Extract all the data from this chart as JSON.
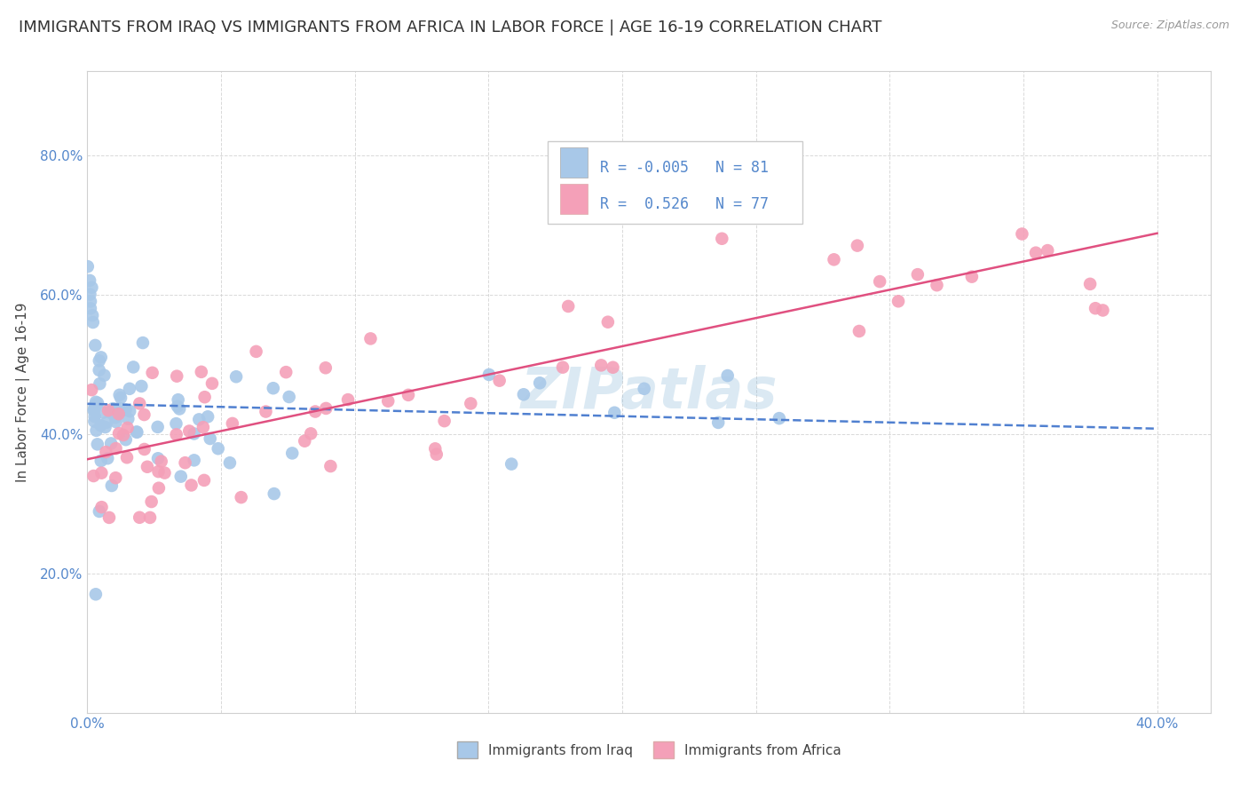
{
  "title": "IMMIGRANTS FROM IRAQ VS IMMIGRANTS FROM AFRICA IN LABOR FORCE | AGE 16-19 CORRELATION CHART",
  "source_text": "Source: ZipAtlas.com",
  "ylabel": "In Labor Force | Age 16-19",
  "xlim": [
    0.0,
    0.42
  ],
  "ylim": [
    0.0,
    0.92
  ],
  "x_ticks": [
    0.0,
    0.05,
    0.1,
    0.15,
    0.2,
    0.25,
    0.3,
    0.35,
    0.4
  ],
  "y_ticks": [
    0.0,
    0.2,
    0.4,
    0.6,
    0.8
  ],
  "y_tick_labels": [
    "",
    "20.0%",
    "40.0%",
    "60.0%",
    "80.0%"
  ],
  "x_tick_labels": [
    "0.0%",
    "",
    "",
    "",
    "",
    "",
    "",
    "",
    "40.0%"
  ],
  "iraq_color": "#a8c8e8",
  "africa_color": "#f4a0b8",
  "iraq_line_color": "#5080d0",
  "africa_line_color": "#e05080",
  "tick_color": "#5588cc",
  "R_iraq": -0.005,
  "N_iraq": 81,
  "R_africa": 0.526,
  "N_africa": 77,
  "watermark": "ZIPatlas",
  "background_color": "#ffffff",
  "grid_color": "#d0d0d0",
  "title_fontsize": 13,
  "axis_label_fontsize": 11,
  "tick_fontsize": 11,
  "legend_fontsize": 12
}
